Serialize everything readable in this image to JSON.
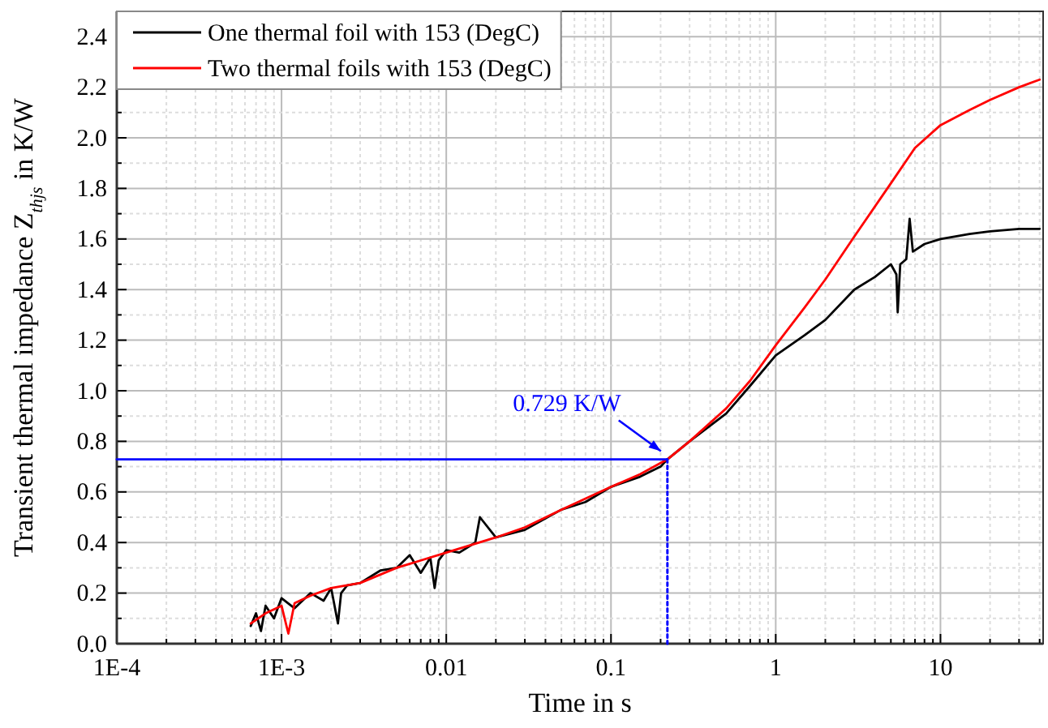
{
  "chart_data": {
    "type": "line",
    "xlabel": "Time in s",
    "ylabel": "Transient thermal impedance Z$_{thjs}$ in K/W",
    "log": "x",
    "grid": true,
    "legend": "top left",
    "line_style": "solid",
    "marker": "none",
    "xlim": [
      0.0001,
      42
    ],
    "ylim": [
      0,
      2.5
    ],
    "xticks": [
      {
        "value": 0.0001,
        "label": "1E-4"
      },
      {
        "value": 0.0002,
        "label": null
      },
      {
        "value": 0.0003,
        "label": null
      },
      {
        "value": 0.0004,
        "label": null
      },
      {
        "value": 0.0005,
        "label": null
      },
      {
        "value": 0.0006,
        "label": null
      },
      {
        "value": 0.0007,
        "label": null
      },
      {
        "value": 0.0008,
        "label": null
      },
      {
        "value": 0.0009,
        "label": null
      },
      {
        "value": 0.001,
        "label": "1E-3"
      },
      {
        "value": 0.002,
        "label": null
      },
      {
        "value": 0.003,
        "label": null
      },
      {
        "value": 0.004,
        "label": null
      },
      {
        "value": 0.005,
        "label": null
      },
      {
        "value": 0.006,
        "label": null
      },
      {
        "value": 0.007,
        "label": null
      },
      {
        "value": 0.008,
        "label": null
      },
      {
        "value": 0.009,
        "label": null
      },
      0.01,
      {
        "value": 0.02,
        "label": null
      },
      {
        "value": 0.03,
        "label": null
      },
      {
        "value": 0.04,
        "label": null
      },
      {
        "value": 0.05,
        "label": null
      },
      {
        "value": 0.06,
        "label": null
      },
      {
        "value": 0.07,
        "label": null
      },
      {
        "value": 0.08,
        "label": null
      },
      {
        "value": 0.09,
        "label": null
      },
      0.1,
      {
        "value": 0.2,
        "label": null
      },
      {
        "value": 0.3,
        "label": null
      },
      {
        "value": 0.4,
        "label": null
      },
      {
        "value": 0.5,
        "label": null
      },
      {
        "value": 0.6,
        "label": null
      },
      {
        "value": 0.7,
        "label": null
      },
      {
        "value": 0.8,
        "label": null
      },
      {
        "value": 0.9,
        "label": null
      },
      1,
      {
        "value": 2,
        "label": null
      },
      {
        "value": 3,
        "label": null
      },
      {
        "value": 4,
        "label": null
      },
      {
        "value": 5,
        "label": null
      },
      {
        "value": 6,
        "label": null
      },
      {
        "value": 7,
        "label": null
      },
      {
        "value": 8,
        "label": null
      },
      {
        "value": 9,
        "label": null
      },
      10,
      {
        "value": 20,
        "label": null
      },
      {
        "value": 30,
        "label": null
      },
      {
        "value": 40,
        "label": null
      }
    ],
    "yticks": [
      {
        "value": 0,
        "label": "0.0"
      },
      {
        "value": 0.1,
        "label": null
      },
      0.2,
      {
        "value": 0.3,
        "label": null
      },
      0.4,
      {
        "value": 0.5,
        "label": null
      },
      0.6,
      {
        "value": 0.7,
        "label": null
      },
      0.8,
      {
        "value": 0.9,
        "label": null
      },
      {
        "value": 1,
        "label": "1.0"
      },
      {
        "value": 1.1,
        "label": null
      },
      1.2,
      {
        "value": 1.3,
        "label": null
      },
      1.4,
      {
        "value": 1.5,
        "label": null
      },
      1.6,
      {
        "value": 1.7,
        "label": null
      },
      1.8,
      {
        "value": 1.9,
        "label": null
      },
      {
        "value": 2,
        "label": "2.0"
      },
      {
        "value": 2.1,
        "label": null
      },
      2.2,
      {
        "value": 2.3,
        "label": null
      },
      2.4,
      {
        "value": 2.5,
        "label": null
      }
    ],
    "series": [
      {
        "name": "One thermal foil with 153 (DegC)",
        "color": "#000000",
        "x": [
          0.00065,
          0.0007,
          0.00075,
          0.0008,
          0.0009,
          0.001,
          0.0012,
          0.0015,
          0.0018,
          0.002,
          0.0022,
          0.0023,
          0.0025,
          0.003,
          0.004,
          0.005,
          0.006,
          0.007,
          0.008,
          0.0085,
          0.009,
          0.01,
          0.012,
          0.015,
          0.016,
          0.02,
          0.03,
          0.05,
          0.07,
          0.1,
          0.15,
          0.2,
          0.22,
          0.3,
          0.5,
          0.7,
          1,
          1.5,
          2,
          3,
          4,
          5,
          5.4,
          5.5,
          5.7,
          6.2,
          6.5,
          6.8,
          8,
          10,
          15,
          20,
          30,
          40
        ],
        "values": [
          0.07,
          0.12,
          0.05,
          0.15,
          0.1,
          0.18,
          0.14,
          0.2,
          0.17,
          0.22,
          0.08,
          0.2,
          0.23,
          0.24,
          0.29,
          0.3,
          0.35,
          0.28,
          0.34,
          0.22,
          0.33,
          0.37,
          0.36,
          0.4,
          0.5,
          0.42,
          0.45,
          0.53,
          0.56,
          0.62,
          0.66,
          0.7,
          0.729,
          0.8,
          0.91,
          1.02,
          1.14,
          1.22,
          1.28,
          1.4,
          1.45,
          1.5,
          1.46,
          1.31,
          1.5,
          1.52,
          1.68,
          1.55,
          1.58,
          1.6,
          1.62,
          1.63,
          1.64,
          1.64
        ]
      },
      {
        "name": "Two thermal foils with 153 (DegC)",
        "color": "#ff0000",
        "x": [
          0.00065,
          0.0008,
          0.001,
          0.0011,
          0.0012,
          0.0015,
          0.002,
          0.003,
          0.005,
          0.01,
          0.02,
          0.03,
          0.05,
          0.1,
          0.15,
          0.22,
          0.3,
          0.5,
          0.7,
          1,
          1.5,
          2,
          3,
          5,
          7,
          10,
          15,
          20,
          30,
          40
        ],
        "values": [
          0.08,
          0.12,
          0.15,
          0.04,
          0.16,
          0.19,
          0.22,
          0.24,
          0.3,
          0.36,
          0.42,
          0.46,
          0.53,
          0.62,
          0.67,
          0.729,
          0.8,
          0.93,
          1.04,
          1.18,
          1.33,
          1.44,
          1.61,
          1.82,
          1.96,
          2.05,
          2.11,
          2.15,
          2.2,
          2.23
        ]
      },
      {
        "color": "#0000ff",
        "x": [
          0.0001,
          0.22
        ],
        "values": [
          0.729,
          0.729
        ]
      },
      {
        "color": "#0000ff",
        "x": [
          0.22,
          0.22
        ],
        "values": [
          0.729,
          0
        ],
        "line_style": "dotted"
      }
    ],
    "annotations": [
      {
        "text": "0.729 K/W",
        "x": 0.22,
        "y": 0.729
      }
    ]
  }
}
